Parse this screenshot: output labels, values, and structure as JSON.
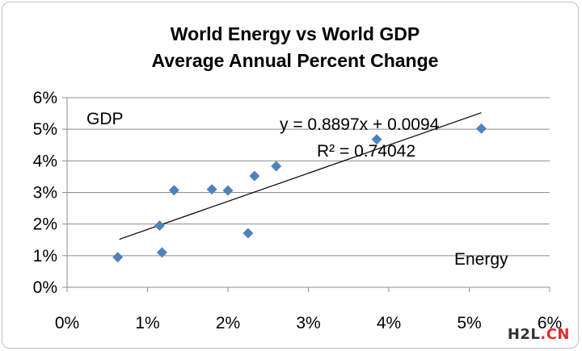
{
  "watermark": {
    "part1": "H2L",
    "part2": ".CN"
  },
  "chart_data": {
    "type": "scatter",
    "title": "World Energy vs World GDP",
    "subtitle": "Average Annual Percent Change",
    "xlabel": "Energy",
    "ylabel": "GDP",
    "xlim": [
      0,
      0.06
    ],
    "ylim": [
      0,
      0.06
    ],
    "x_tick_labels": [
      "0%",
      "1%",
      "2%",
      "3%",
      "4%",
      "5%",
      "6%"
    ],
    "y_tick_labels": [
      "0%",
      "1%",
      "2%",
      "3%",
      "4%",
      "5%",
      "6%"
    ],
    "grid": "horizontal",
    "marker_color": "#4f81bd",
    "series": [
      {
        "x": [
          0.0063,
          0.0115,
          0.0118,
          0.0133,
          0.018,
          0.02,
          0.0225,
          0.0233,
          0.026,
          0.0385,
          0.0515
        ],
        "y": [
          0.0095,
          0.0195,
          0.011,
          0.0307,
          0.031,
          0.0306,
          0.0171,
          0.0352,
          0.0383,
          0.0468,
          0.0502
        ]
      }
    ],
    "trendline": {
      "slope": 0.8897,
      "intercept": 0.0094,
      "x_range": [
        0.0065,
        0.0515
      ],
      "equation": "y = 0.8897x + 0.0094",
      "r2_label": "R² = 0.74042"
    }
  }
}
